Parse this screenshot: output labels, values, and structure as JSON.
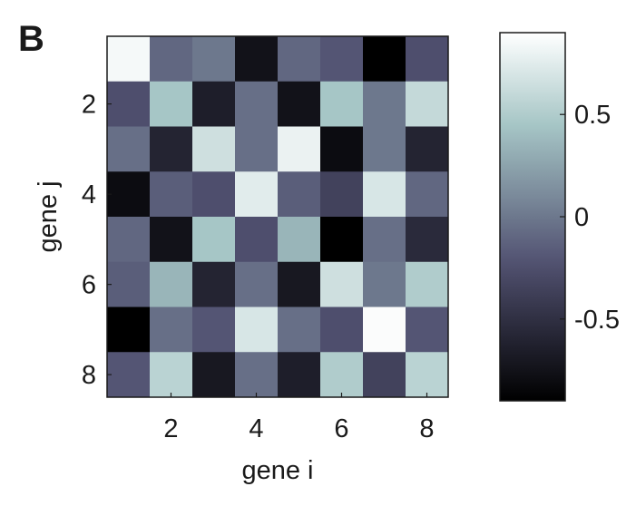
{
  "panel_label": "B",
  "chart_data": [
    {
      "type": "heatmap",
      "xlabel": "gene i",
      "ylabel": "gene j",
      "x_categories": [
        1,
        2,
        3,
        4,
        5,
        6,
        7,
        8
      ],
      "y_categories": [
        1,
        2,
        3,
        4,
        5,
        6,
        7,
        8
      ],
      "x_tick_labels": [
        "2",
        "4",
        "6",
        "8"
      ],
      "y_tick_labels": [
        "2",
        "4",
        "6",
        "8"
      ],
      "colormap": "bone",
      "values": [
        [
          0.85,
          -0.1,
          0.0,
          -0.75,
          -0.1,
          -0.2,
          -0.9,
          -0.25
        ],
        [
          -0.25,
          0.45,
          -0.65,
          -0.05,
          -0.75,
          0.45,
          0.0,
          0.6
        ],
        [
          -0.05,
          -0.6,
          0.65,
          -0.05,
          0.8,
          -0.8,
          0.0,
          -0.6
        ],
        [
          -0.8,
          -0.15,
          -0.25,
          0.75,
          -0.15,
          -0.35,
          0.7,
          -0.1
        ],
        [
          -0.1,
          -0.75,
          0.45,
          -0.25,
          0.35,
          -0.9,
          -0.05,
          -0.55
        ],
        [
          -0.15,
          0.35,
          -0.6,
          -0.05,
          -0.7,
          0.65,
          0.0,
          0.5
        ],
        [
          -0.9,
          -0.05,
          -0.2,
          0.7,
          -0.05,
          -0.25,
          0.88,
          -0.2
        ],
        [
          -0.2,
          0.55,
          -0.7,
          -0.05,
          -0.65,
          0.5,
          -0.35,
          0.55
        ]
      ]
    },
    {
      "type": "colorbar",
      "colormap": "bone",
      "range": [
        -0.9,
        0.9
      ],
      "ticks": [
        0.5,
        0,
        -0.5
      ],
      "tick_labels": [
        "0.5",
        "0",
        "-0.5"
      ]
    }
  ]
}
